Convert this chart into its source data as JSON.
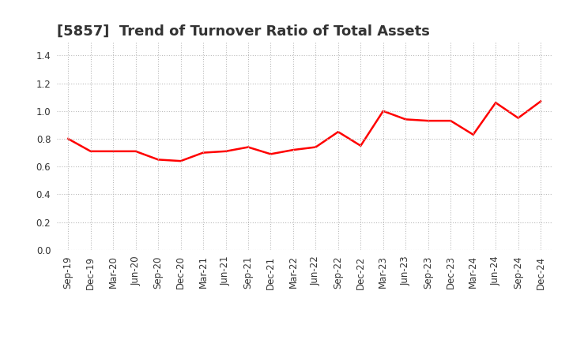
{
  "title": "[5857]  Trend of Turnover Ratio of Total Assets",
  "labels": [
    "Sep-19",
    "Dec-19",
    "Mar-20",
    "Jun-20",
    "Sep-20",
    "Dec-20",
    "Mar-21",
    "Jun-21",
    "Sep-21",
    "Dec-21",
    "Mar-22",
    "Jun-22",
    "Sep-22",
    "Dec-22",
    "Mar-23",
    "Jun-23",
    "Sep-23",
    "Dec-23",
    "Mar-24",
    "Jun-24",
    "Sep-24",
    "Dec-24"
  ],
  "values": [
    0.8,
    0.71,
    0.71,
    0.71,
    0.65,
    0.64,
    0.7,
    0.71,
    0.74,
    0.69,
    0.72,
    0.74,
    0.85,
    0.75,
    1.0,
    0.94,
    0.93,
    0.93,
    0.83,
    1.06,
    0.95,
    1.07
  ],
  "line_color": "#FF0000",
  "line_width": 1.8,
  "ylim": [
    0.0,
    1.5
  ],
  "yticks": [
    0.0,
    0.2,
    0.4,
    0.6,
    0.8,
    1.0,
    1.2,
    1.4
  ],
  "background_color": "#FFFFFF",
  "plot_bg_color": "#FFFFFF",
  "grid_color": "#BBBBBB",
  "title_fontsize": 13,
  "title_color": "#333333",
  "tick_fontsize": 8.5
}
